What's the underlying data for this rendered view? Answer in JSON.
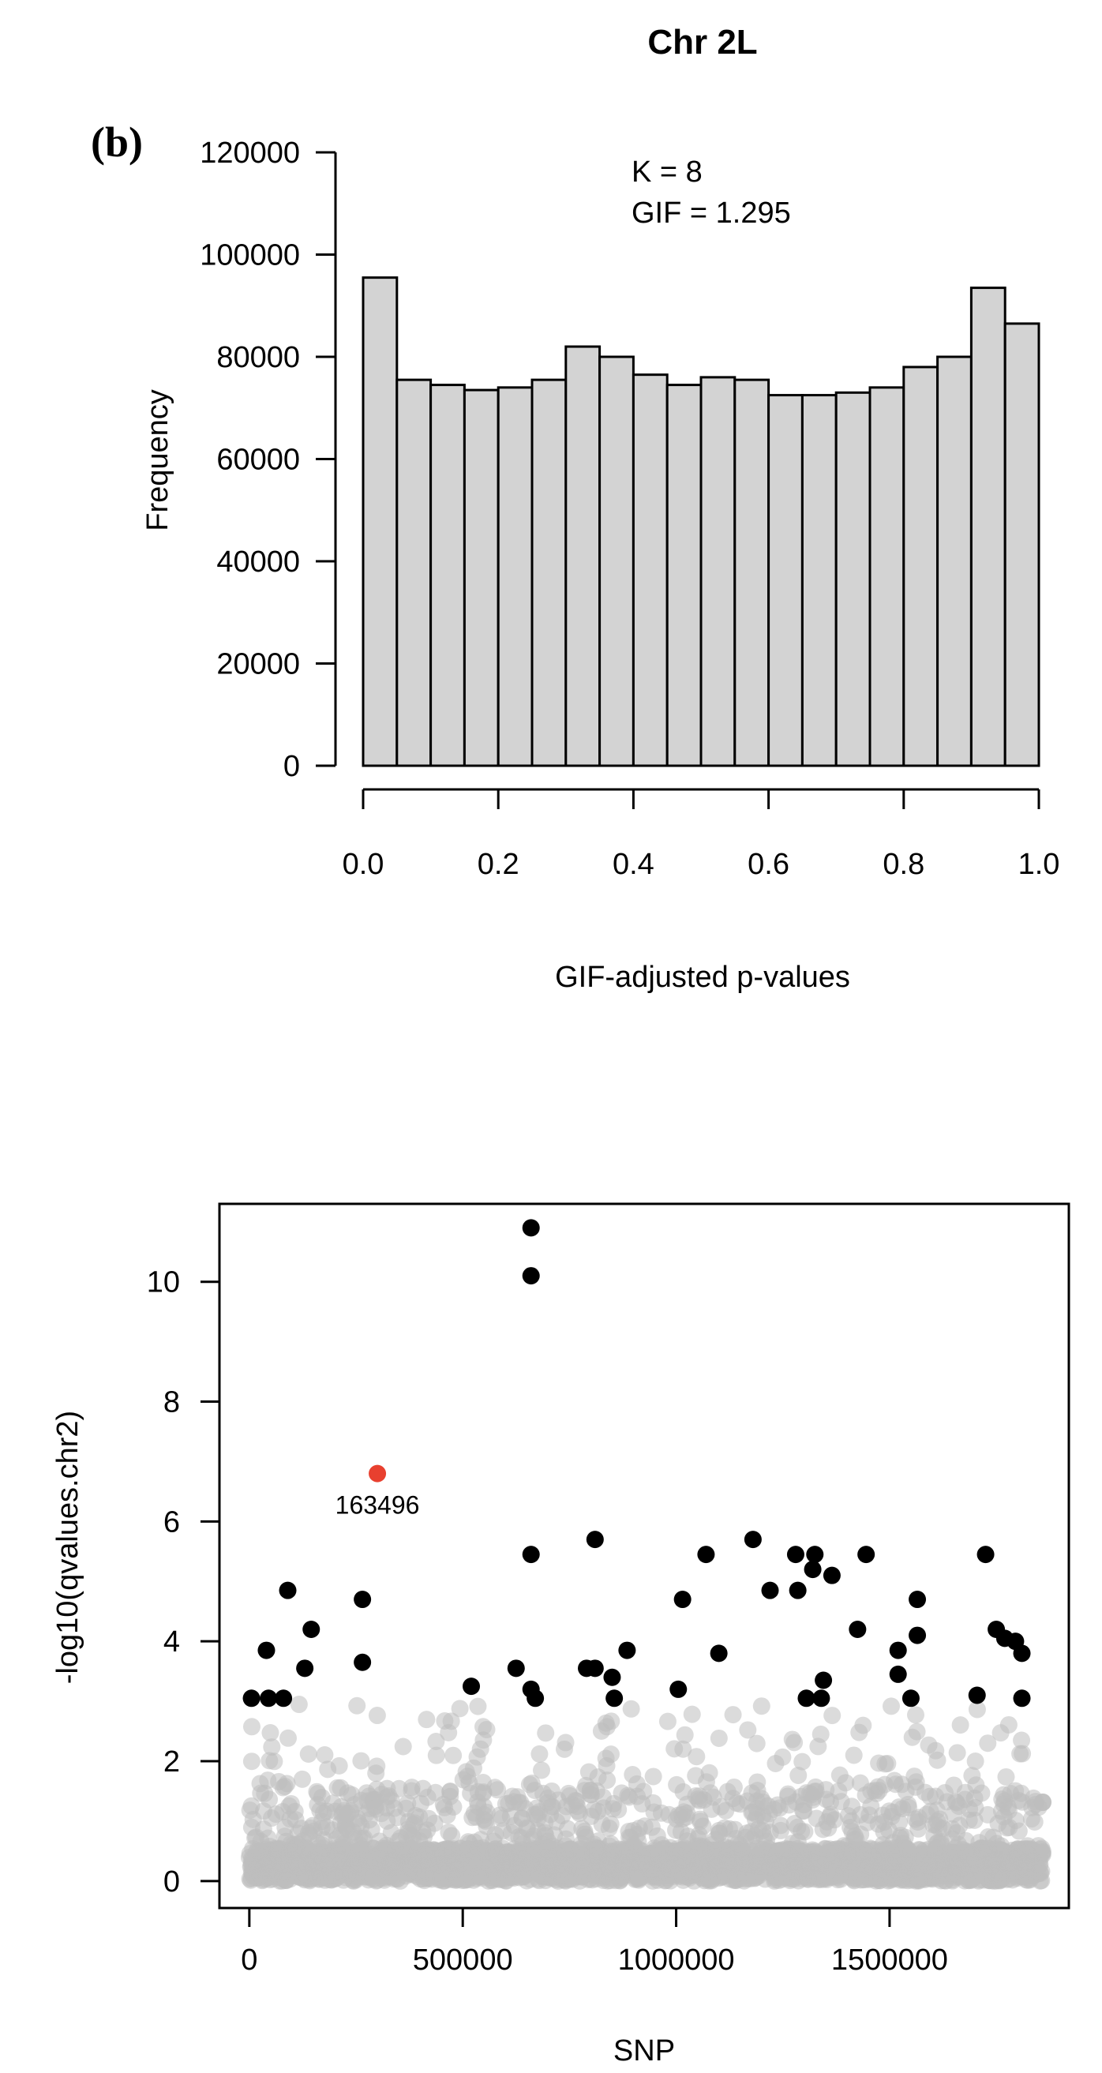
{
  "colors": {
    "bar_fill": "#d3d3d3",
    "axis": "#000000",
    "background_points": "#bdbdbd",
    "significant_points": "#000000",
    "highlight": "#e8402f"
  },
  "chart_data": [
    {
      "type": "bar",
      "title": "Chr 2L",
      "panel_label": "(b)",
      "xlabel": "GIF-adjusted p-values",
      "ylabel": "Frequency",
      "xlim": [
        0,
        1
      ],
      "ylim": [
        0,
        120000
      ],
      "xticks": [
        "0.0",
        "0.2",
        "0.4",
        "0.6",
        "0.8",
        "1.0"
      ],
      "yticks": [
        "0",
        "20000",
        "40000",
        "60000",
        "80000",
        "100000",
        "120000"
      ],
      "bin_width": 0.05,
      "bin_starts": [
        0,
        0.05,
        0.1,
        0.15,
        0.2,
        0.25,
        0.3,
        0.35,
        0.4,
        0.45,
        0.5,
        0.55,
        0.6,
        0.65,
        0.7,
        0.75,
        0.8,
        0.85,
        0.9,
        0.95
      ],
      "values": [
        95500,
        75500,
        74500,
        73500,
        74000,
        75500,
        82000,
        80000,
        76500,
        74500,
        76000,
        75500,
        72500,
        72500,
        73000,
        74000,
        78000,
        80000,
        93500,
        86500
      ],
      "annotations": [
        "K = 8",
        "GIF =  1.295"
      ],
      "grid": false
    },
    {
      "type": "scatter",
      "title": "",
      "xlabel": "SNP",
      "ylabel": "-log10(qvalues.chr2)",
      "xlim": [
        -70000,
        1920000
      ],
      "ylim": [
        -0.45,
        11.3
      ],
      "xticks": [
        "0",
        "500000",
        "1000000",
        "1500000"
      ],
      "yticks": [
        "0",
        "2",
        "4",
        "6",
        "8",
        "10"
      ],
      "grid": false,
      "highlight": {
        "x": 300000,
        "y": 6.8,
        "label": "163496"
      },
      "significant": [
        [
          5000,
          3.05
        ],
        [
          40000,
          3.85
        ],
        [
          45000,
          3.05
        ],
        [
          80000,
          3.05
        ],
        [
          90000,
          4.85
        ],
        [
          130000,
          3.55
        ],
        [
          145000,
          4.2
        ],
        [
          265000,
          4.7
        ],
        [
          265000,
          3.65
        ],
        [
          520000,
          3.25
        ],
        [
          625000,
          3.55
        ],
        [
          660000,
          10.9
        ],
        [
          660000,
          10.1
        ],
        [
          660000,
          5.45
        ],
        [
          660000,
          3.2
        ],
        [
          670000,
          3.05
        ],
        [
          790000,
          3.55
        ],
        [
          810000,
          5.7
        ],
        [
          810000,
          3.55
        ],
        [
          850000,
          3.4
        ],
        [
          855000,
          3.05
        ],
        [
          885000,
          3.85
        ],
        [
          1005000,
          3.2
        ],
        [
          1015000,
          4.7
        ],
        [
          1070000,
          5.45
        ],
        [
          1100000,
          3.8
        ],
        [
          1180000,
          5.7
        ],
        [
          1220000,
          4.85
        ],
        [
          1280000,
          5.45
        ],
        [
          1285000,
          4.85
        ],
        [
          1305000,
          3.05
        ],
        [
          1320000,
          5.2
        ],
        [
          1325000,
          5.45
        ],
        [
          1340000,
          3.05
        ],
        [
          1345000,
          3.35
        ],
        [
          1365000,
          5.1
        ],
        [
          1425000,
          4.2
        ],
        [
          1445000,
          5.45
        ],
        [
          1520000,
          3.85
        ],
        [
          1520000,
          3.45
        ],
        [
          1550000,
          3.05
        ],
        [
          1565000,
          4.7
        ],
        [
          1565000,
          4.1
        ],
        [
          1705000,
          3.1
        ],
        [
          1725000,
          5.45
        ],
        [
          1750000,
          4.2
        ],
        [
          1770000,
          4.05
        ],
        [
          1795000,
          4.0
        ],
        [
          1810000,
          3.8
        ],
        [
          1810000,
          3.05
        ]
      ],
      "background": {
        "x_range": [
          0,
          1860000
        ],
        "note": "dense cloud of non-significant SNPs between 0 and ~3"
      }
    }
  ]
}
